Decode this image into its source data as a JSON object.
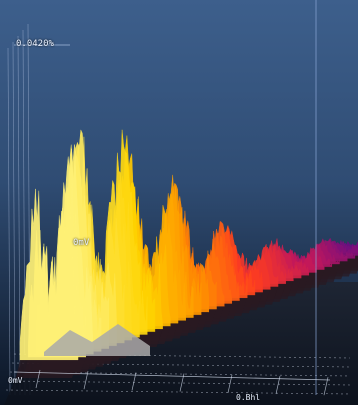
{
  "chart_data": {
    "type": "area",
    "title": "",
    "view": "3d-waterfall",
    "z_max_label": "0.0420%",
    "z_baseline_label": "0mV",
    "floor_origin_label": "0mV",
    "x_axis_partial_label": "0.Bhl",
    "colormap": [
      "#6a0d83",
      "#c2185b",
      "#ff3d1f",
      "#ff9100",
      "#ffd400",
      "#fff176"
    ],
    "grid": true,
    "slice_count": 40,
    "slices": [
      {
        "index": 0,
        "values": [
          0.18,
          0.55,
          0.92,
          0.68,
          0.4,
          0.22,
          0.1
        ]
      },
      {
        "index": 1,
        "values": [
          0.2,
          0.6,
          0.95,
          0.7,
          0.42,
          0.24,
          0.12
        ]
      },
      {
        "index": 2,
        "values": [
          0.22,
          0.74,
          0.88,
          0.66,
          0.46,
          0.26,
          0.12
        ]
      },
      {
        "index": 3,
        "values": [
          0.2,
          0.7,
          0.98,
          0.72,
          0.5,
          0.28,
          0.14
        ]
      },
      {
        "index": 4,
        "values": [
          0.18,
          0.52,
          0.8,
          0.7,
          0.48,
          0.26,
          0.12
        ]
      },
      {
        "index": 5,
        "values": [
          0.16,
          0.46,
          0.7,
          0.62,
          0.44,
          0.22,
          0.1
        ]
      }
    ]
  }
}
